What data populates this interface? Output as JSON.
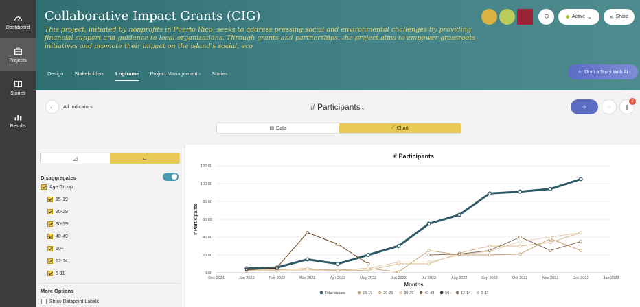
{
  "nav": [
    {
      "label": "Dashboard",
      "icon": "dashboard-gauge-icon"
    },
    {
      "label": "Projects",
      "icon": "briefcase-icon"
    },
    {
      "label": "Stories",
      "icon": "book-icon"
    },
    {
      "label": "Results",
      "icon": "bar-chart-icon"
    }
  ],
  "header": {
    "title": "Collaborative Impact Grants (CIG)",
    "description": "This project, initiated by nonprofits in Puerto Rico, seeks to address pressing social and environmental challenges by providing financial support and guidance to local organizations. Through grants and partnerships, the project aims to empower grassroots initiatives and promote their impact on the island's social, eco",
    "tabs": [
      "Design",
      "Stakeholders",
      "Logframe",
      "Project Management",
      "Stories"
    ],
    "active_tab": "Logframe",
    "status": "Active",
    "share": "Share",
    "draft_button": "Draft a Story With AI",
    "colors": {
      "header": "#3f7f83",
      "accent": "#e9c956"
    }
  },
  "toolbar": {
    "back_label": "All Indicators",
    "indicator": "# Participants",
    "badge_count": "2",
    "view_data": "Data",
    "view_chart": "Chart"
  },
  "filters": {
    "disaggregates_label": "Disaggregates",
    "group_label": "Age Group",
    "groups": [
      "15-19",
      "20-29",
      "30-39",
      "40-49",
      "50+",
      "12-14",
      "5-11"
    ],
    "more_options": "More Options",
    "show_labels": "Show Datapoint Labels"
  },
  "chart_data": {
    "type": "line",
    "title": "# Participants",
    "xlabel": "Months",
    "ylabel": "# Participants",
    "ylim": [
      0,
      120
    ],
    "yticks": [
      "0.00",
      "20.00",
      "40.00",
      "60.00",
      "80.00",
      "100.00",
      "120.00"
    ],
    "x_ticks": [
      "Dec 2021",
      "Jan 2022",
      "Feb 2022",
      "Mar 2022",
      "Apr 2022",
      "May 2022",
      "Jun 2022",
      "Jul 2022",
      "Aug 2022",
      "Sep 2022",
      "Oct 2022",
      "Nov 2022",
      "Dec 2022",
      "Jan 2023"
    ],
    "grid": true,
    "legend": "bottom",
    "series": [
      {
        "name": "Total Values",
        "color": "#2e5a66",
        "width": 3,
        "values": [
          null,
          5,
          6,
          15,
          10,
          20,
          30,
          55,
          65,
          89,
          91,
          94,
          105,
          null
        ]
      },
      {
        "name": "15-19",
        "color": "#c9a373",
        "width": 1,
        "values": [
          null,
          4,
          4,
          4,
          3,
          5,
          1,
          25,
          20,
          20,
          21,
          38,
          25,
          null
        ]
      },
      {
        "name": "20-29",
        "color": "#d6b890",
        "width": 1,
        "values": [
          null,
          3,
          3,
          5,
          2,
          3,
          10,
          10,
          22,
          30,
          30,
          34,
          45,
          null
        ]
      },
      {
        "name": "30-39",
        "color": "#e4cfb2",
        "width": 1,
        "values": [
          null,
          2,
          2,
          3,
          2,
          5,
          12,
          12,
          20,
          24,
          35,
          40,
          45,
          null
        ]
      },
      {
        "name": "40-49",
        "color": "#7a5a3a",
        "width": 1.2,
        "values": [
          null,
          3,
          6,
          45,
          32,
          10,
          null,
          null,
          null,
          null,
          null,
          null,
          null,
          null
        ]
      },
      {
        "name": "50+",
        "color": "#2e2e2e",
        "width": 1,
        "values": [
          null,
          4,
          5,
          null,
          null,
          null,
          null,
          null,
          null,
          null,
          null,
          null,
          null,
          null
        ]
      },
      {
        "name": "12-14",
        "color": "#8a7055",
        "width": 1,
        "values": [
          null,
          null,
          null,
          null,
          null,
          null,
          null,
          20,
          21,
          25,
          40,
          25,
          35,
          null
        ]
      },
      {
        "name": "5-11",
        "color": "#c7c7c7",
        "width": 1,
        "values": [
          null,
          null,
          null,
          null,
          null,
          null,
          null,
          null,
          null,
          null,
          null,
          null,
          null,
          null
        ]
      }
    ]
  }
}
